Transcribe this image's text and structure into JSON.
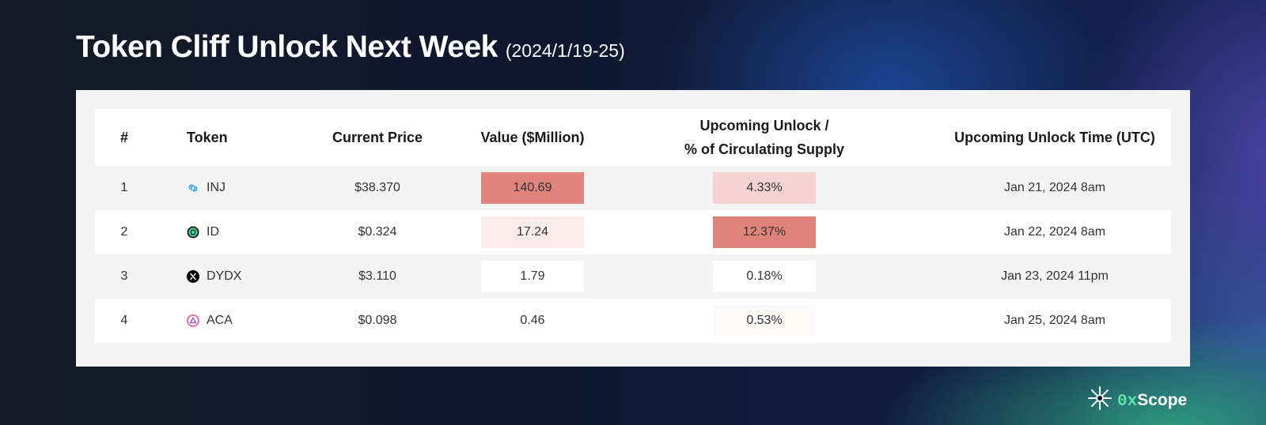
{
  "title": {
    "main": "Token Cliff Unlock Next Week",
    "sub": "(2024/1/19-25)"
  },
  "table": {
    "headers": {
      "num": "#",
      "token": "Token",
      "price": "Current Price",
      "value": "Value ($Million)",
      "unlock_line1": "Upcoming Unlock /",
      "unlock_line2": "% of Circulating Supply",
      "time": "Upcoming Unlock Time (UTC)"
    },
    "rows": [
      {
        "num": "1",
        "token": "INJ",
        "icon": "injective-icon",
        "price": "$38.370",
        "value": "140.69",
        "unlock_pct": "4.33%",
        "time": "Jan 21, 2024 8am"
      },
      {
        "num": "2",
        "token": "ID",
        "icon": "space-id-icon",
        "price": "$0.324",
        "value": "17.24",
        "unlock_pct": "12.37%",
        "time": "Jan 22, 2024 8am"
      },
      {
        "num": "3",
        "token": "DYDX",
        "icon": "dydx-icon",
        "price": "$3.110",
        "value": "1.79",
        "unlock_pct": "0.18%",
        "time": "Jan 23, 2024 11pm"
      },
      {
        "num": "4",
        "token": "ACA",
        "icon": "acala-icon",
        "price": "$0.098",
        "value": "0.46",
        "unlock_pct": "0.53%",
        "time": "Jan 25, 2024 8am"
      }
    ],
    "heat_colors": {
      "strong": "#e0837a",
      "light": "#f5d3d3",
      "faint": "#faecec",
      "minimal": "#fcfbfa",
      "none": "#ffffff"
    }
  },
  "brand": {
    "prefix": "0x",
    "name": "Scope",
    "icon": "sparkle-icon",
    "accent": "#5fe3a6"
  }
}
